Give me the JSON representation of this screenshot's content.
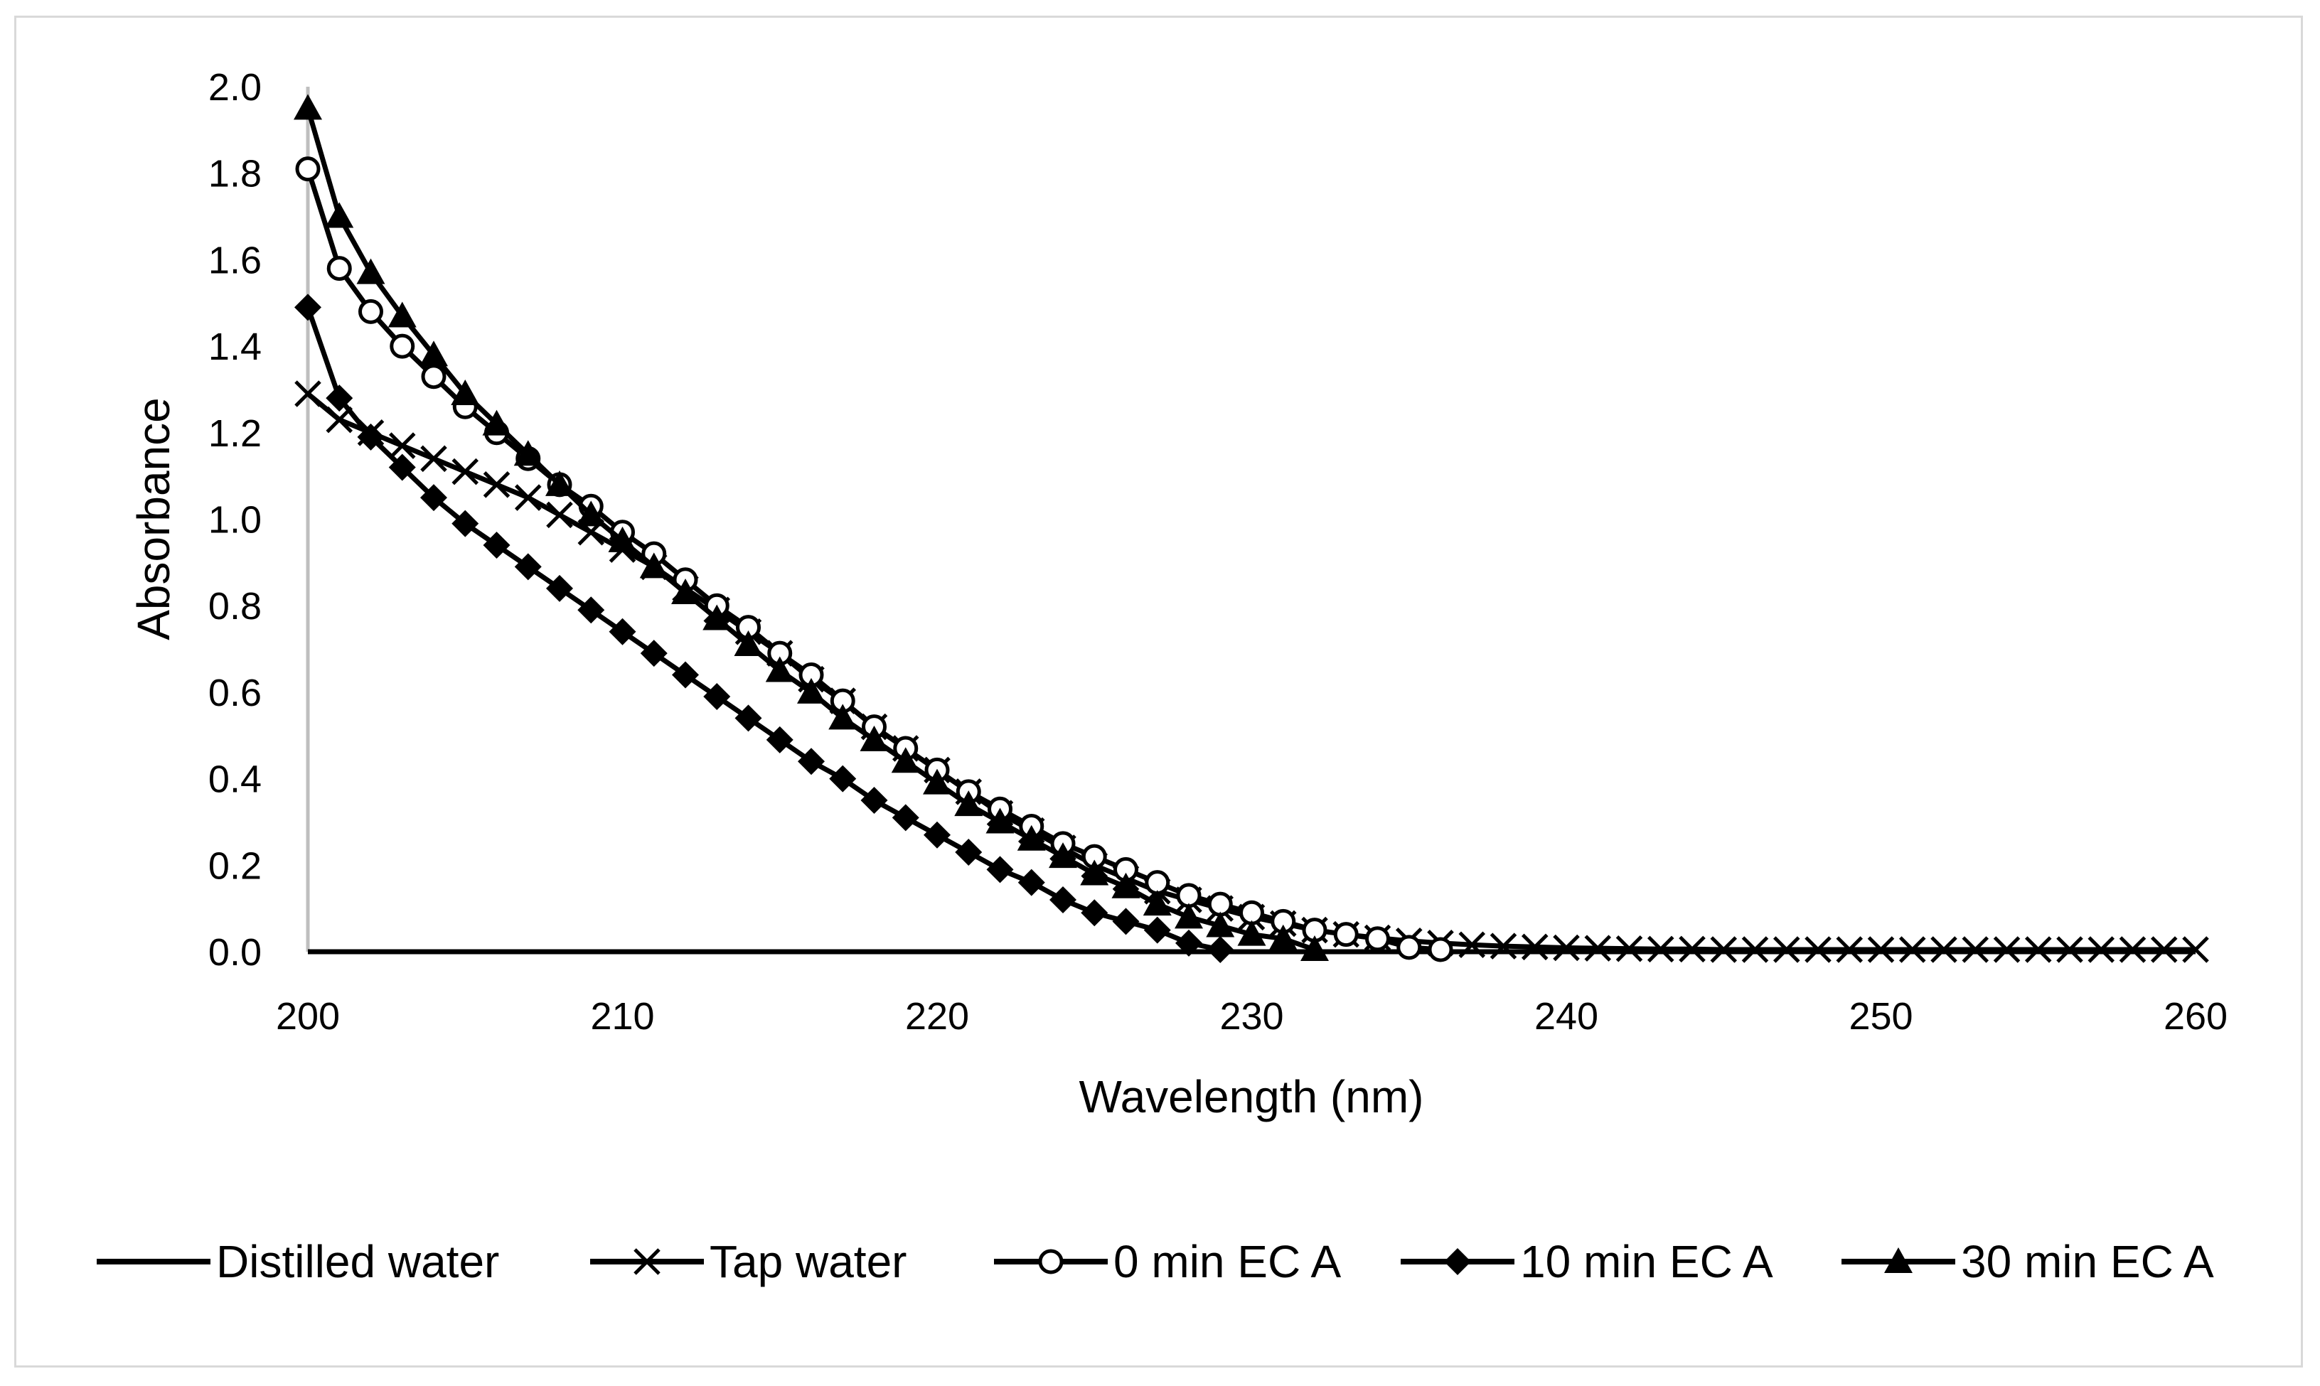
{
  "chart_data": {
    "type": "line",
    "title": "",
    "xlabel": "Wavelength (nm)",
    "ylabel": "Absorbance",
    "xlim": [
      200,
      260
    ],
    "ylim": [
      0,
      2.0
    ],
    "xticks": [
      200,
      210,
      220,
      230,
      240,
      250,
      260
    ],
    "xtick_labels": [
      "200",
      "210",
      "220",
      "230",
      "240",
      "250",
      "260"
    ],
    "yticks": [
      0,
      0.2,
      0.4,
      0.6,
      0.8,
      1.0,
      1.2,
      1.4,
      1.6,
      1.8,
      2.0
    ],
    "ytick_labels": [
      "0.0",
      "0.2",
      "0.4",
      "0.6",
      "0.8",
      "1.0",
      "1.2",
      "1.4",
      "1.6",
      "1.8",
      "2.0"
    ],
    "grid": false,
    "legend_position": "bottom",
    "line_color": "#000000",
    "series": [
      {
        "name": "Distilled water",
        "marker": "none",
        "x": [
          200,
          260
        ],
        "y": [
          0.0,
          0.0
        ]
      },
      {
        "name": "Tap water",
        "marker": "x",
        "x": [
          200,
          201,
          202,
          203,
          204,
          205,
          206,
          207,
          208,
          209,
          210,
          211,
          212,
          213,
          214,
          215,
          216,
          217,
          218,
          219,
          220,
          221,
          222,
          223,
          224,
          225,
          226,
          227,
          228,
          229,
          230,
          231,
          232,
          233,
          234,
          235,
          236,
          237,
          238,
          239,
          240,
          241,
          242,
          243,
          244,
          245,
          246,
          247,
          248,
          249,
          250,
          251,
          252,
          253,
          254,
          255,
          256,
          257,
          258,
          259,
          260
        ],
        "y": [
          1.29,
          1.23,
          1.2,
          1.17,
          1.14,
          1.11,
          1.08,
          1.05,
          1.01,
          0.97,
          0.93,
          0.89,
          0.84,
          0.79,
          0.74,
          0.69,
          0.63,
          0.58,
          0.52,
          0.47,
          0.42,
          0.37,
          0.32,
          0.28,
          0.24,
          0.2,
          0.17,
          0.14,
          0.12,
          0.1,
          0.08,
          0.065,
          0.05,
          0.04,
          0.032,
          0.025,
          0.02,
          0.016,
          0.013,
          0.011,
          0.009,
          0.008,
          0.007,
          0.006,
          0.006,
          0.005,
          0.005,
          0.005,
          0.005,
          0.005,
          0.005,
          0.005,
          0.005,
          0.005,
          0.005,
          0.005,
          0.005,
          0.005,
          0.005,
          0.005,
          0.005
        ]
      },
      {
        "name": "0 min EC A",
        "marker": "circle",
        "x": [
          200,
          201,
          202,
          203,
          204,
          205,
          206,
          207,
          208,
          209,
          210,
          211,
          212,
          213,
          214,
          215,
          216,
          217,
          218,
          219,
          220,
          221,
          222,
          223,
          224,
          225,
          226,
          227,
          228,
          229,
          230,
          231,
          232,
          233,
          234,
          235,
          236
        ],
        "y": [
          1.81,
          1.58,
          1.48,
          1.4,
          1.33,
          1.26,
          1.2,
          1.14,
          1.08,
          1.03,
          0.97,
          0.92,
          0.86,
          0.8,
          0.75,
          0.69,
          0.64,
          0.58,
          0.52,
          0.47,
          0.42,
          0.37,
          0.33,
          0.29,
          0.25,
          0.22,
          0.19,
          0.16,
          0.13,
          0.11,
          0.09,
          0.07,
          0.05,
          0.04,
          0.03,
          0.01,
          0.005
        ]
      },
      {
        "name": "10 min EC A",
        "marker": "diamond",
        "x": [
          200,
          201,
          202,
          203,
          204,
          205,
          206,
          207,
          208,
          209,
          210,
          211,
          212,
          213,
          214,
          215,
          216,
          217,
          218,
          219,
          220,
          221,
          222,
          223,
          224,
          225,
          226,
          227,
          228,
          229
        ],
        "y": [
          1.49,
          1.28,
          1.19,
          1.12,
          1.05,
          0.99,
          0.94,
          0.89,
          0.84,
          0.79,
          0.74,
          0.69,
          0.64,
          0.59,
          0.54,
          0.49,
          0.44,
          0.4,
          0.35,
          0.31,
          0.27,
          0.23,
          0.19,
          0.16,
          0.12,
          0.09,
          0.07,
          0.05,
          0.02,
          0.005
        ]
      },
      {
        "name": "30 min EC A",
        "marker": "triangle",
        "x": [
          200,
          201,
          202,
          203,
          204,
          205,
          206,
          207,
          208,
          209,
          210,
          211,
          212,
          213,
          214,
          215,
          216,
          217,
          218,
          219,
          220,
          221,
          222,
          223,
          224,
          225,
          226,
          227,
          228,
          229,
          230,
          231,
          232
        ],
        "y": [
          1.95,
          1.7,
          1.57,
          1.47,
          1.38,
          1.29,
          1.22,
          1.15,
          1.08,
          1.01,
          0.95,
          0.89,
          0.83,
          0.77,
          0.71,
          0.65,
          0.6,
          0.54,
          0.49,
          0.44,
          0.39,
          0.34,
          0.3,
          0.26,
          0.22,
          0.18,
          0.15,
          0.11,
          0.08,
          0.06,
          0.04,
          0.03,
          0.005
        ]
      }
    ]
  }
}
